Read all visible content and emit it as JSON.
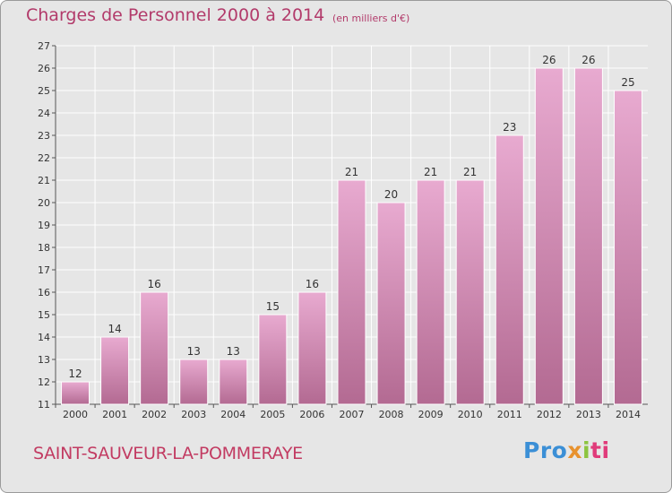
{
  "header": {
    "title": "Charges de Personnel 2000 à 2014",
    "subtitle": "(en milliers d'€)"
  },
  "footer": {
    "commune": "SAINT-SAUVEUR-LA-POMMERAYE",
    "logo_parts": [
      "Pro",
      "x",
      "i",
      "ti"
    ]
  },
  "colors": {
    "title": "#b23a6a",
    "bar_light": "#e8aad0",
    "bar_dark": "#b36a92",
    "background": "#e6e6e6"
  },
  "chart_data": {
    "type": "bar",
    "title": "Charges de Personnel 2000 à 2014",
    "categories": [
      "2000",
      "2001",
      "2002",
      "2003",
      "2004",
      "2005",
      "2006",
      "2007",
      "2008",
      "2009",
      "2010",
      "2011",
      "2012",
      "2013",
      "2014"
    ],
    "values": [
      12,
      14,
      16,
      13,
      13,
      15,
      16,
      21,
      20,
      21,
      21,
      23,
      26,
      26,
      25
    ],
    "ylim": [
      11,
      27
    ],
    "yticks": [
      11,
      12,
      13,
      14,
      15,
      16,
      17,
      18,
      19,
      20,
      21,
      22,
      23,
      24,
      25,
      26,
      27
    ],
    "grid": true,
    "data_labels": true
  }
}
